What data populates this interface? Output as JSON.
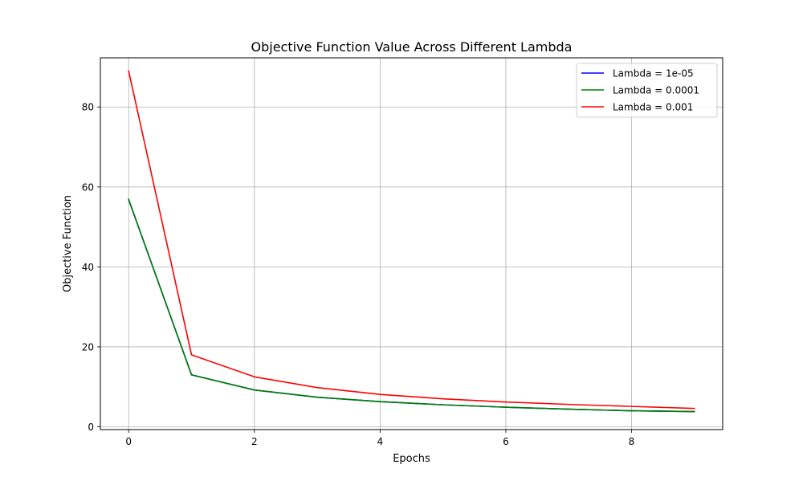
{
  "chart_data": {
    "type": "line",
    "title": "Objective Function Value Across Different Lambda",
    "xlabel": "Epochs",
    "ylabel": "Objective Function",
    "x": [
      0,
      1,
      2,
      3,
      4,
      5,
      6,
      7,
      8,
      9
    ],
    "xlim": [
      -0.45,
      9.45
    ],
    "ylim": [
      -0.7,
      92.3
    ],
    "xticks": [
      0,
      2,
      4,
      6,
      8
    ],
    "yticks": [
      0,
      20,
      40,
      60,
      80
    ],
    "grid": true,
    "legend_position": "top-right",
    "series": [
      {
        "name": "Lambda = 1e-05",
        "color": "#0000ff",
        "values": [
          56.8,
          13.0,
          9.2,
          7.4,
          6.3,
          5.5,
          4.9,
          4.4,
          4.0,
          3.8
        ]
      },
      {
        "name": "Lambda = 0.0001",
        "color": "#008000",
        "values": [
          56.9,
          13.0,
          9.2,
          7.4,
          6.3,
          5.5,
          4.9,
          4.4,
          4.0,
          3.8
        ]
      },
      {
        "name": "Lambda = 0.001",
        "color": "#ff0000",
        "values": [
          89.0,
          18.0,
          12.5,
          9.8,
          8.1,
          7.0,
          6.2,
          5.6,
          5.1,
          4.6
        ]
      }
    ]
  }
}
